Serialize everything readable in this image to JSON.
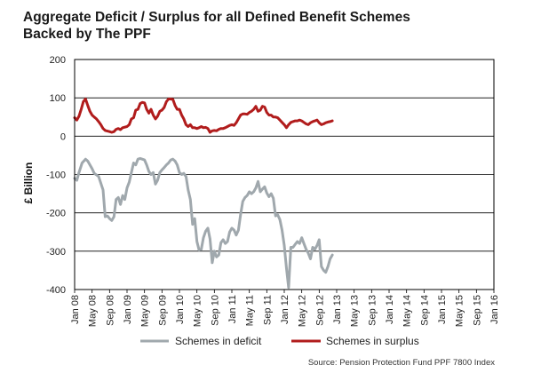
{
  "title": [
    "Aggregate Deficit / Surplus for all Defined Benefit Schemes",
    "Backed by The PPF"
  ],
  "source": "Source: Pension Protection Fund PPF 7800 Index",
  "colors": {
    "deficit": "#a0a8ad",
    "surplus": "#b11c1c",
    "grid": "#000000"
  },
  "chart_data": {
    "type": "line",
    "title": "Aggregate Deficit / Surplus for all Defined Benefit Schemes Backed by The PPF",
    "ylabel": "£ Billion",
    "xlabel": "",
    "ylim": [
      -400,
      200
    ],
    "yticks": [
      -400,
      -300,
      -200,
      -100,
      0,
      100,
      200
    ],
    "grid": "horizontal",
    "legend": "bottom",
    "x_range": [
      "Jan 08",
      "Jan 16"
    ],
    "x_ticks": [
      "Jan 08",
      "May 08",
      "Sep 08",
      "Jan 09",
      "May 09",
      "Sep 09",
      "Jan 10",
      "May 10",
      "Sep 10",
      "Jan 11",
      "May 11",
      "Sep 11",
      "Jan 12",
      "May 12",
      "Sep 12",
      "Jan 13",
      "May 13",
      "Sep 13",
      "Jan 14",
      "May 14",
      "Sep 14",
      "Jan 15",
      "May 15",
      "Sep 15",
      "Jan 16"
    ],
    "series": [
      {
        "name": "Schemes in deficit",
        "points": [
          [
            0,
            -110
          ],
          [
            0.5,
            -115
          ],
          [
            1,
            -95
          ],
          [
            1.7,
            -70
          ],
          [
            2.5,
            -60
          ],
          [
            3,
            -65
          ],
          [
            4,
            -85
          ],
          [
            4.5,
            -97
          ],
          [
            5.5,
            -105
          ],
          [
            6.5,
            -140
          ],
          [
            7,
            -210
          ],
          [
            7.5,
            -208
          ],
          [
            8,
            -215
          ],
          [
            8.5,
            -220
          ],
          [
            9,
            -210
          ],
          [
            9.5,
            -165
          ],
          [
            10,
            -160
          ],
          [
            10.5,
            -178
          ],
          [
            11,
            -155
          ],
          [
            11.5,
            -165
          ],
          [
            12,
            -135
          ],
          [
            12.5,
            -120
          ],
          [
            13,
            -95
          ],
          [
            13.5,
            -70
          ],
          [
            14,
            -75
          ],
          [
            14.5,
            -60
          ],
          [
            15,
            -58
          ],
          [
            16,
            -62
          ],
          [
            16.5,
            -75
          ],
          [
            17,
            -92
          ],
          [
            17.5,
            -100
          ],
          [
            18,
            -95
          ],
          [
            18.5,
            -125
          ],
          [
            19,
            -115
          ],
          [
            19.5,
            -95
          ],
          [
            20,
            -88
          ],
          [
            20.5,
            -82
          ],
          [
            21,
            -75
          ],
          [
            21.5,
            -70
          ],
          [
            22,
            -62
          ],
          [
            22.5,
            -60
          ],
          [
            23,
            -65
          ],
          [
            23.5,
            -75
          ],
          [
            24,
            -95
          ],
          [
            24.5,
            -100
          ],
          [
            25,
            -97
          ],
          [
            25.5,
            -105
          ],
          [
            26,
            -140
          ],
          [
            26.5,
            -165
          ],
          [
            27,
            -230
          ],
          [
            27.5,
            -215
          ],
          [
            28,
            -275
          ],
          [
            28.5,
            -297
          ],
          [
            29,
            -295
          ],
          [
            29.5,
            -265
          ],
          [
            30,
            -248
          ],
          [
            30.5,
            -240
          ],
          [
            31,
            -268
          ],
          [
            31.5,
            -330
          ],
          [
            32,
            -300
          ],
          [
            32.5,
            -315
          ],
          [
            33,
            -310
          ],
          [
            33.5,
            -278
          ],
          [
            34,
            -270
          ],
          [
            34.5,
            -280
          ],
          [
            35,
            -275
          ],
          [
            35.5,
            -250
          ],
          [
            36,
            -240
          ],
          [
            36.5,
            -245
          ],
          [
            37,
            -258
          ],
          [
            37.5,
            -245
          ],
          [
            38,
            -205
          ],
          [
            38.5,
            -170
          ],
          [
            39,
            -160
          ],
          [
            39.5,
            -155
          ],
          [
            40,
            -145
          ],
          [
            40.5,
            -150
          ],
          [
            41,
            -145
          ],
          [
            41.5,
            -135
          ],
          [
            42,
            -118
          ],
          [
            42.5,
            -145
          ],
          [
            43,
            -138
          ],
          [
            43.5,
            -132
          ],
          [
            44,
            -148
          ],
          [
            44.5,
            -158
          ],
          [
            45,
            -150
          ],
          [
            45.5,
            -162
          ],
          [
            46,
            -208
          ],
          [
            46.5,
            -205
          ],
          [
            47,
            -218
          ],
          [
            47.5,
            -245
          ],
          [
            48,
            -285
          ],
          [
            48.5,
            -345
          ],
          [
            49,
            -395
          ],
          [
            49.5,
            -290
          ],
          [
            50,
            -290
          ],
          [
            50.5,
            -282
          ],
          [
            51,
            -275
          ],
          [
            51.5,
            -280
          ],
          [
            52,
            -265
          ],
          [
            52.5,
            -280
          ],
          [
            53,
            -295
          ],
          [
            53.5,
            -305
          ],
          [
            54,
            -320
          ],
          [
            54.5,
            -290
          ],
          [
            55,
            -295
          ],
          [
            55.5,
            -285
          ],
          [
            56,
            -270
          ],
          [
            56.5,
            -340
          ],
          [
            57,
            -350
          ],
          [
            57.5,
            -355
          ],
          [
            58,
            -340
          ],
          [
            58.5,
            -320
          ],
          [
            59,
            -310
          ]
        ]
      },
      {
        "name": "Schemes in surplus",
        "points": [
          [
            0,
            48
          ],
          [
            0.5,
            42
          ],
          [
            1,
            52
          ],
          [
            1.5,
            70
          ],
          [
            2,
            90
          ],
          [
            2.5,
            97
          ],
          [
            3,
            80
          ],
          [
            3.5,
            65
          ],
          [
            4,
            55
          ],
          [
            4.5,
            50
          ],
          [
            5,
            45
          ],
          [
            5.5,
            38
          ],
          [
            6,
            30
          ],
          [
            6.5,
            20
          ],
          [
            7,
            15
          ],
          [
            8,
            12
          ],
          [
            8.5,
            10
          ],
          [
            9,
            12
          ],
          [
            9.5,
            18
          ],
          [
            10,
            20
          ],
          [
            10.5,
            17
          ],
          [
            11,
            22
          ],
          [
            12,
            25
          ],
          [
            12.5,
            30
          ],
          [
            13,
            45
          ],
          [
            13.5,
            48
          ],
          [
            14,
            68
          ],
          [
            14.5,
            70
          ],
          [
            15,
            85
          ],
          [
            15.5,
            88
          ],
          [
            16,
            87
          ],
          [
            16.5,
            70
          ],
          [
            17,
            60
          ],
          [
            17.5,
            70
          ],
          [
            18,
            55
          ],
          [
            18.5,
            45
          ],
          [
            19,
            52
          ],
          [
            19.5,
            65
          ],
          [
            20,
            68
          ],
          [
            20.5,
            75
          ],
          [
            21,
            90
          ],
          [
            21.5,
            97
          ],
          [
            22,
            97
          ],
          [
            22.5,
            96
          ],
          [
            23,
            80
          ],
          [
            23.5,
            70
          ],
          [
            24,
            70
          ],
          [
            24.5,
            55
          ],
          [
            25,
            45
          ],
          [
            25.5,
            30
          ],
          [
            26,
            25
          ],
          [
            26.5,
            30
          ],
          [
            27,
            22
          ],
          [
            27.5,
            22
          ],
          [
            28,
            20
          ],
          [
            28.5,
            22
          ],
          [
            29,
            25
          ],
          [
            29.5,
            22
          ],
          [
            30,
            23
          ],
          [
            30.5,
            20
          ],
          [
            31,
            10
          ],
          [
            31.5,
            14
          ],
          [
            32,
            15
          ],
          [
            32.5,
            14
          ],
          [
            33,
            18
          ],
          [
            33.5,
            20
          ],
          [
            34,
            20
          ],
          [
            34.5,
            22
          ],
          [
            35,
            25
          ],
          [
            35.5,
            28
          ],
          [
            36,
            30
          ],
          [
            36.5,
            28
          ],
          [
            37,
            35
          ],
          [
            37.5,
            45
          ],
          [
            38,
            55
          ],
          [
            38.5,
            58
          ],
          [
            39,
            58
          ],
          [
            39.5,
            57
          ],
          [
            40,
            62
          ],
          [
            40.5,
            65
          ],
          [
            41,
            70
          ],
          [
            41.5,
            78
          ],
          [
            42,
            65
          ],
          [
            42.5,
            68
          ],
          [
            43,
            78
          ],
          [
            43.5,
            76
          ],
          [
            44,
            62
          ],
          [
            44.5,
            55
          ],
          [
            45,
            55
          ],
          [
            45.5,
            50
          ],
          [
            46,
            50
          ],
          [
            46.5,
            48
          ],
          [
            47,
            42
          ],
          [
            47.5,
            36
          ],
          [
            48,
            30
          ],
          [
            48.5,
            22
          ],
          [
            49,
            30
          ],
          [
            49.5,
            36
          ],
          [
            50,
            38
          ],
          [
            50.5,
            40
          ],
          [
            51,
            40
          ],
          [
            51.5,
            42
          ],
          [
            52,
            40
          ],
          [
            52.5,
            36
          ],
          [
            53,
            32
          ],
          [
            53.5,
            30
          ],
          [
            54,
            35
          ],
          [
            54.5,
            38
          ],
          [
            55,
            40
          ],
          [
            55.5,
            42
          ],
          [
            56,
            35
          ],
          [
            56.5,
            30
          ],
          [
            57,
            32
          ],
          [
            57.5,
            35
          ],
          [
            58,
            37
          ],
          [
            58.5,
            38
          ],
          [
            59,
            40
          ]
        ]
      }
    ]
  }
}
